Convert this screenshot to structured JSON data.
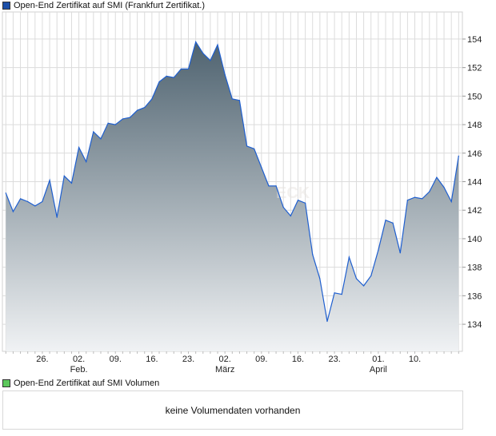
{
  "price_legend": {
    "label": "Open-End Zertifikat auf SMI  (Frankfurt Zertifikat.)",
    "color": "#1c4fa8"
  },
  "volume_legend": {
    "label": "Open-End Zertifikat auf SMI  Volumen",
    "color": "#5cc85c"
  },
  "volume_panel": {
    "message": "keine Volumendaten vorhanden"
  },
  "watermark": "ECK",
  "chart_data": {
    "type": "area",
    "title": "",
    "xlabel": "",
    "ylabel": "",
    "ylim": [
      132.1,
      155.9
    ],
    "grid": true,
    "line_color": "#1f5fcf",
    "fill_top_color": "#4f6370",
    "fill_bottom_color": "#f0f2f4",
    "y_ticks": [
      134,
      136,
      138,
      140,
      142,
      144,
      146,
      148,
      150,
      152,
      154
    ],
    "x_ticks": [
      {
        "index": 5,
        "label": "26.",
        "sub": ""
      },
      {
        "index": 10,
        "label": "02.",
        "sub": "Feb."
      },
      {
        "index": 15,
        "label": "09.",
        "sub": ""
      },
      {
        "index": 20,
        "label": "16.",
        "sub": ""
      },
      {
        "index": 25,
        "label": "23.",
        "sub": ""
      },
      {
        "index": 30,
        "label": "02.",
        "sub": "März"
      },
      {
        "index": 35,
        "label": "09.",
        "sub": ""
      },
      {
        "index": 40,
        "label": "16.",
        "sub": ""
      },
      {
        "index": 45,
        "label": "23.",
        "sub": ""
      },
      {
        "index": 51,
        "label": "01.",
        "sub": "April"
      },
      {
        "index": 56,
        "label": "10.",
        "sub": ""
      }
    ],
    "values": [
      143.2,
      141.9,
      142.8,
      142.6,
      142.3,
      142.6,
      144.1,
      141.5,
      144.4,
      143.9,
      146.4,
      145.4,
      147.5,
      147.0,
      148.1,
      148.0,
      148.4,
      148.5,
      149.0,
      149.2,
      149.8,
      151.0,
      151.4,
      151.3,
      151.9,
      151.9,
      153.8,
      153.0,
      152.5,
      153.6,
      151.5,
      149.8,
      149.7,
      146.5,
      146.3,
      145.0,
      143.7,
      143.7,
      142.2,
      141.6,
      142.7,
      142.5,
      138.9,
      137.2,
      134.2,
      136.2,
      136.1,
      138.7,
      137.2,
      136.7,
      137.4,
      139.2,
      141.3,
      141.1,
      139.0,
      142.7,
      142.9,
      142.8,
      143.3,
      144.3,
      143.6,
      142.6,
      145.8
    ]
  }
}
